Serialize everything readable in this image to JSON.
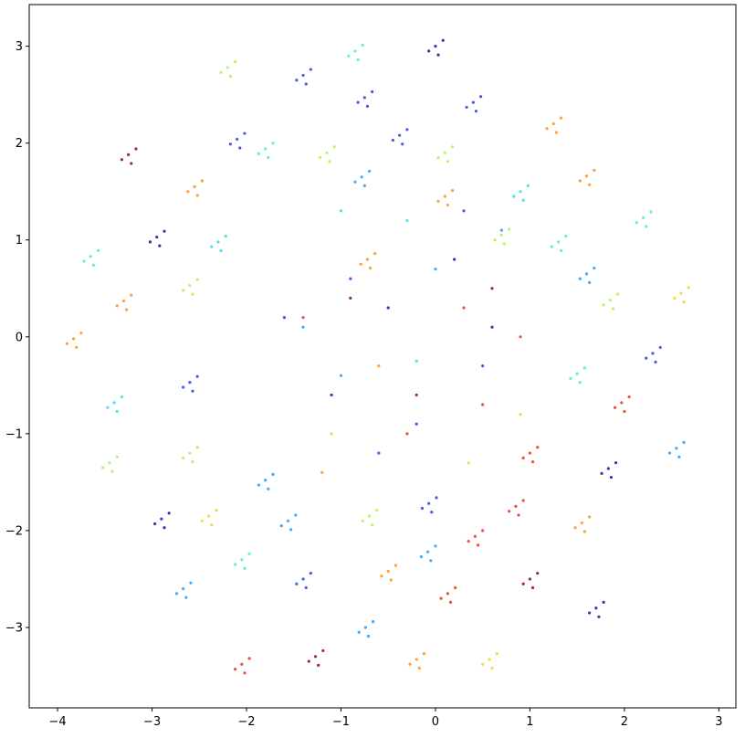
{
  "chart_data": {
    "type": "scatter",
    "xlim": [
      -4.3,
      3.18
    ],
    "ylim": [
      -3.83,
      3.43
    ],
    "xticks": [
      {
        "value": -4,
        "label": "−4"
      },
      {
        "value": -3,
        "label": "−3"
      },
      {
        "value": -2,
        "label": "−2"
      },
      {
        "value": -1,
        "label": "−1"
      },
      0,
      1,
      2,
      3
    ],
    "yticks": [
      {
        "value": -3,
        "label": "−3"
      },
      {
        "value": -2,
        "label": "−2"
      },
      {
        "value": -1,
        "label": "−1"
      },
      0,
      1,
      2,
      3
    ],
    "series": [
      {
        "color": "#1010a8",
        "x": [
          0,
          0.08,
          -0.07,
          0.03,
          -2.95,
          -2.87,
          -3.02,
          -2.92,
          -2.9,
          -2.82,
          -2.97,
          -2.87,
          1.7,
          1.78,
          1.63,
          1.73,
          1.83,
          1.91,
          1.76,
          1.86,
          -0.5,
          0.6,
          -1.1,
          0.2
        ],
        "y": [
          3.0,
          3.06,
          2.95,
          2.91,
          1.03,
          1.09,
          0.98,
          0.94,
          -1.88,
          -1.82,
          -1.93,
          -1.97,
          -2.8,
          -2.74,
          -2.85,
          -2.89,
          -1.36,
          -1.3,
          -1.41,
          -1.45,
          0.3,
          0.1,
          -0.6,
          0.8
        ]
      },
      {
        "color": "#2040e8",
        "x": [
          -1.4,
          -1.32,
          -1.47,
          -1.37,
          -0.75,
          -0.67,
          -0.82,
          -0.72,
          0.4,
          0.48,
          0.33,
          0.43,
          -0.38,
          -0.3,
          -0.45,
          -0.35,
          -2.1,
          -2.02,
          -2.17,
          -2.07,
          2.3,
          2.38,
          2.23,
          2.33,
          -2.6,
          -2.52,
          -2.67,
          -2.57,
          -0.07,
          0.01,
          -0.14,
          -0.04,
          -1.4,
          -1.32,
          -1.47,
          -1.37,
          -0.2,
          -0.9,
          0.5,
          -1.6,
          -0.6,
          0.3
        ],
        "y": [
          2.7,
          2.76,
          2.65,
          2.61,
          2.47,
          2.53,
          2.42,
          2.38,
          2.42,
          2.48,
          2.37,
          2.33,
          2.08,
          2.14,
          2.03,
          1.99,
          2.04,
          2.1,
          1.99,
          1.95,
          -0.17,
          -0.11,
          -0.22,
          -0.26,
          -0.47,
          -0.41,
          -0.52,
          -0.56,
          -1.72,
          -1.66,
          -1.77,
          -1.81,
          -2.5,
          -2.44,
          -2.55,
          -2.59,
          -0.9,
          0.6,
          -0.3,
          0.2,
          -1.2,
          1.3
        ]
      },
      {
        "color": "#1a9cff",
        "x": [
          -0.78,
          -0.7,
          -0.85,
          -0.75,
          1.6,
          1.68,
          1.53,
          1.63,
          2.55,
          2.63,
          2.48,
          2.58,
          -1.8,
          -1.72,
          -1.87,
          -1.77,
          -1.56,
          -1.48,
          -1.63,
          -1.53,
          -0.08,
          0,
          -0.15,
          -0.05,
          -2.67,
          -2.59,
          -2.74,
          -2.64,
          -0.74,
          -0.66,
          -0.81,
          -0.71,
          -1.0,
          0,
          -1.4,
          0.7
        ],
        "y": [
          1.65,
          1.71,
          1.6,
          1.56,
          0.65,
          0.71,
          0.6,
          0.56,
          -1.15,
          -1.09,
          -1.2,
          -1.24,
          -1.48,
          -1.42,
          -1.53,
          -1.57,
          -1.9,
          -1.84,
          -1.95,
          -1.99,
          -2.22,
          -2.16,
          -2.27,
          -2.31,
          -2.6,
          -2.54,
          -2.65,
          -2.69,
          -3.0,
          -2.94,
          -3.05,
          -3.09,
          -0.4,
          0.7,
          0.1,
          1.1
        ]
      },
      {
        "color": "#30dce8",
        "x": [
          0.9,
          0.98,
          0.83,
          0.93,
          -2.3,
          -2.22,
          -2.37,
          -2.27,
          -3.4,
          -3.32,
          -3.47,
          -3.37,
          -0.3,
          -1.0,
          -0.2
        ],
        "y": [
          1.5,
          1.56,
          1.45,
          1.41,
          0.98,
          1.04,
          0.93,
          0.89,
          -0.68,
          -0.62,
          -0.73,
          -0.77,
          1.2,
          1.3,
          -0.25
        ]
      },
      {
        "color": "#50f0a8",
        "x": [
          -0.85,
          -0.77,
          -0.92,
          -0.82,
          -1.8,
          -1.72,
          -1.87,
          -1.77,
          2.2,
          2.28,
          2.13,
          2.23,
          1.3,
          1.38,
          1.23,
          1.33,
          -3.65,
          -3.57,
          -3.72,
          -3.62,
          1.5,
          1.58,
          1.43,
          1.53,
          -2.05,
          -1.97,
          -2.12,
          -2.02
        ],
        "y": [
          2.95,
          3.01,
          2.9,
          2.86,
          1.94,
          2.0,
          1.89,
          1.85,
          1.23,
          1.29,
          1.18,
          1.14,
          0.98,
          1.04,
          0.93,
          0.89,
          0.83,
          0.89,
          0.78,
          0.74,
          -0.38,
          -0.32,
          -0.43,
          -0.47,
          -2.3,
          -2.24,
          -2.35,
          -2.39
        ]
      },
      {
        "color": "#a4f850",
        "x": [
          -2.2,
          -2.12,
          -2.27,
          -2.17,
          -1.15,
          -1.07,
          -1.22,
          -1.12,
          0.1,
          0.18,
          0.03,
          0.13,
          0.7,
          0.78,
          0.63,
          0.73,
          -2.6,
          -2.52,
          -2.67,
          -2.57,
          1.85,
          1.93,
          1.78,
          1.88,
          -3.45,
          -3.37,
          -3.52,
          -3.42,
          -2.6,
          -2.52,
          -2.67,
          -2.57,
          -0.7,
          -0.62,
          -0.77,
          -0.67
        ],
        "y": [
          2.78,
          2.84,
          2.73,
          2.69,
          1.9,
          1.96,
          1.85,
          1.81,
          1.9,
          1.96,
          1.85,
          1.81,
          1.05,
          1.11,
          1.0,
          0.96,
          0.53,
          0.59,
          0.48,
          0.44,
          0.38,
          0.44,
          0.33,
          0.29,
          -1.3,
          -1.24,
          -1.35,
          -1.39,
          -1.2,
          -1.14,
          -1.25,
          -1.29,
          -1.85,
          -1.79,
          -1.9,
          -1.94
        ]
      },
      {
        "color": "#f8d020",
        "x": [
          2.6,
          2.68,
          2.53,
          2.63,
          -2.4,
          -2.32,
          -2.47,
          -2.37,
          0.57,
          0.65,
          0.5,
          0.6,
          0.9,
          -1.1,
          0.35
        ],
        "y": [
          0.45,
          0.51,
          0.4,
          0.36,
          -1.85,
          -1.79,
          -1.9,
          -1.94,
          -3.33,
          -3.27,
          -3.38,
          -3.42,
          -0.8,
          -1.0,
          -1.3
        ]
      },
      {
        "color": "#ff9010",
        "x": [
          1.25,
          1.33,
          1.18,
          1.28,
          1.6,
          1.68,
          1.53,
          1.63,
          -2.55,
          -2.47,
          -2.62,
          -2.52,
          -0.72,
          -0.64,
          -0.79,
          -0.69,
          -3.3,
          -3.22,
          -3.37,
          -3.27,
          -3.83,
          -3.75,
          -3.9,
          -3.8,
          1.55,
          1.63,
          1.48,
          1.58,
          -0.5,
          -0.42,
          -0.57,
          -0.47,
          -0.2,
          -0.12,
          -0.27,
          -0.17,
          0.1,
          0.18,
          0.03,
          0.13,
          -1.2,
          -0.6
        ],
        "y": [
          2.2,
          2.26,
          2.15,
          2.11,
          1.66,
          1.72,
          1.61,
          1.57,
          1.55,
          1.61,
          1.5,
          1.46,
          0.8,
          0.86,
          0.75,
          0.71,
          0.37,
          0.43,
          0.32,
          0.28,
          -0.02,
          0.04,
          -0.07,
          -0.11,
          -1.92,
          -1.86,
          -1.97,
          -2.01,
          -2.42,
          -2.36,
          -2.47,
          -2.51,
          -3.33,
          -3.27,
          -3.38,
          -3.42,
          1.45,
          1.51,
          1.4,
          1.36,
          -1.4,
          -0.3
        ]
      },
      {
        "color": "#e83418",
        "x": [
          1.97,
          2.05,
          1.9,
          2.0,
          1.0,
          1.08,
          0.93,
          1.03,
          0.85,
          0.93,
          0.78,
          0.88,
          0.42,
          0.5,
          0.35,
          0.45,
          0.13,
          0.21,
          0.06,
          0.16,
          -2.05,
          -1.97,
          -2.12,
          -2.02,
          0.3,
          0.5,
          -1.4,
          0.9,
          -0.3
        ],
        "y": [
          -0.68,
          -0.62,
          -0.73,
          -0.77,
          -1.2,
          -1.14,
          -1.25,
          -1.29,
          -1.75,
          -1.69,
          -1.8,
          -1.84,
          -2.06,
          -2.0,
          -2.11,
          -2.15,
          -2.65,
          -2.59,
          -2.7,
          -2.74,
          -3.38,
          -3.32,
          -3.43,
          -3.47,
          0.3,
          -0.7,
          0.2,
          0.0,
          -1.0
        ]
      },
      {
        "color": "#8b0a0a",
        "x": [
          -3.25,
          -3.17,
          -3.32,
          -3.22,
          1.0,
          1.08,
          0.93,
          1.03,
          -1.27,
          -1.19,
          -1.34,
          -1.24,
          -0.9,
          0.6,
          -0.2
        ],
        "y": [
          1.88,
          1.94,
          1.83,
          1.79,
          -2.5,
          -2.44,
          -2.55,
          -2.59,
          -3.3,
          -3.24,
          -3.35,
          -3.39,
          0.4,
          0.5,
          -0.6
        ]
      }
    ]
  }
}
